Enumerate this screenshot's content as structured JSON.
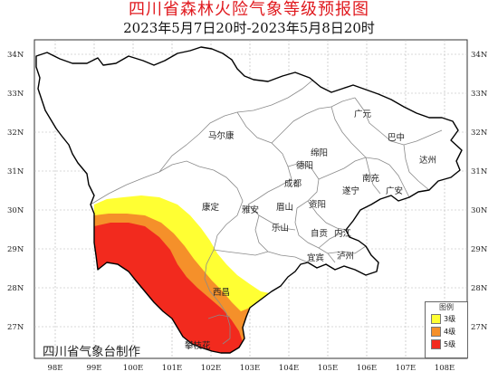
{
  "title": "四川省森林火险气象等级预报图",
  "subtitle": "2023年5月7日20时-2023年5月8日20时",
  "axes": {
    "lat_ticks": [
      "34N",
      "33N",
      "32N",
      "31N",
      "30N",
      "29N",
      "28N",
      "27N"
    ],
    "lon_ticks": [
      "98E",
      "99E",
      "100E",
      "101E",
      "102E",
      "103E",
      "104E",
      "105E",
      "106E",
      "107E",
      "108E"
    ]
  },
  "cities": {
    "maerkang": "马尔康",
    "guangyuan": "广元",
    "bazhong": "巴中",
    "mianyang": "绵阳",
    "dazhou": "达州",
    "deyang": "德阳",
    "nanchong": "南充",
    "chengdu": "成都",
    "suining": "遂宁",
    "guangan": "广安",
    "kangding": "康定",
    "yaan": "雅安",
    "meishan": "眉山",
    "ziyang": "资阳",
    "leshan": "乐山",
    "zigong": "自贡",
    "neijiang": "内江",
    "yibin": "宜宾",
    "luzhou": "泸州",
    "xichang": "西昌",
    "panzhihua": "攀枝花"
  },
  "legend": {
    "title": "图例",
    "items": [
      {
        "label": "3级",
        "color": "#ffff33"
      },
      {
        "label": "4级",
        "color": "#f5902a"
      },
      {
        "label": "5级",
        "color": "#f22a1e"
      }
    ]
  },
  "source": "四川省气象台制作",
  "colors": {
    "title": "#e0191e",
    "level3": "#ffff33",
    "level4": "#f5902a",
    "level5": "#f22a1e",
    "province_border": "#000000",
    "city_border": "#8a8a8a"
  }
}
